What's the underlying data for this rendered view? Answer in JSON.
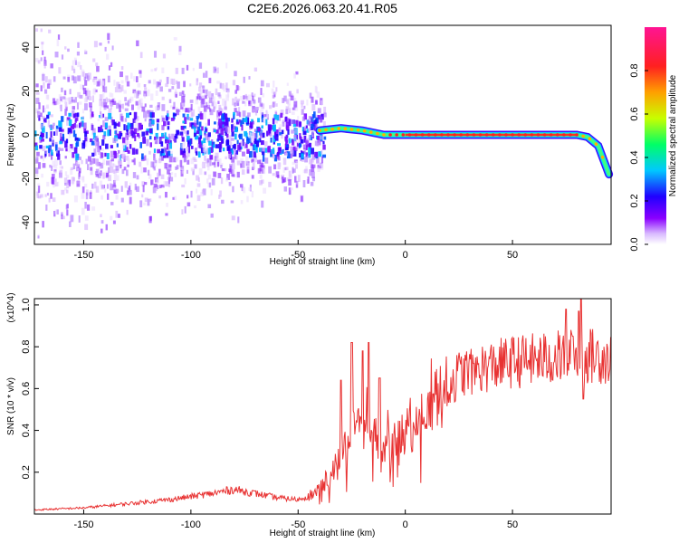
{
  "figure": {
    "title": "C2E6.2026.063.20.41.R05"
  },
  "chart_data": [
    {
      "type": "heatmap",
      "title": "C2E6.2026.063.20.41.R05",
      "xlabel": "Height of straight line (km)",
      "ylabel": "Frequency (Hz)",
      "xlim": [
        -173,
        96
      ],
      "ylim": [
        -50,
        50
      ],
      "x_ticks": [
        -150,
        -100,
        -50,
        0,
        50
      ],
      "y_ticks": [
        -40,
        -20,
        0,
        20,
        40
      ],
      "colorbar": {
        "label": "Normalized spectral amplitude",
        "range": [
          0,
          1
        ],
        "ticks": [
          0.0,
          0.2,
          0.4,
          0.6,
          0.8
        ],
        "colormap": [
          "#8a00ff",
          "#0000ff",
          "#00c8ff",
          "#00ff66",
          "#c8ff00",
          "#ffa000",
          "#ff2020",
          "#ff1493"
        ]
      },
      "ridge": {
        "description": "Bright spectral line near 0 Hz from about -40 km to +85 km, bending down to about -18 Hz at +95 km",
        "points": [
          [
            -40,
            2
          ],
          [
            -30,
            3
          ],
          [
            -20,
            2
          ],
          [
            -10,
            0
          ],
          [
            0,
            0
          ],
          [
            50,
            0
          ],
          [
            80,
            0
          ],
          [
            85,
            -1
          ],
          [
            90,
            -5
          ],
          [
            95,
            -18
          ]
        ]
      }
    },
    {
      "type": "line",
      "xlabel": "Height of straight line (km)",
      "ylabel": "SNR (10 * v/v)",
      "y_multiplier": "(x10^4)",
      "xlim": [
        -173,
        96
      ],
      "ylim": [
        0,
        1.03
      ],
      "x_ticks": [
        -150,
        -100,
        -50,
        0,
        50
      ],
      "y_ticks": [
        0.2,
        0.4,
        0.6,
        0.8,
        1.0
      ],
      "series": [
        {
          "name": "SNR",
          "color": "#e83232",
          "envelope": [
            [
              -173,
              0.02
            ],
            [
              -150,
              0.03
            ],
            [
              -130,
              0.05
            ],
            [
              -110,
              0.07
            ],
            [
              -90,
              0.1
            ],
            [
              -80,
              0.12
            ],
            [
              -70,
              0.1
            ],
            [
              -60,
              0.08
            ],
            [
              -50,
              0.07
            ],
            [
              -42,
              0.1
            ],
            [
              -35,
              0.18
            ],
            [
              -30,
              0.3
            ],
            [
              -25,
              0.4
            ],
            [
              -20,
              0.42
            ],
            [
              -15,
              0.4
            ],
            [
              -10,
              0.32
            ],
            [
              -5,
              0.38
            ],
            [
              0,
              0.42
            ],
            [
              5,
              0.42
            ],
            [
              10,
              0.5
            ],
            [
              15,
              0.55
            ],
            [
              20,
              0.62
            ],
            [
              25,
              0.68
            ],
            [
              30,
              0.7
            ],
            [
              40,
              0.72
            ],
            [
              50,
              0.74
            ],
            [
              60,
              0.75
            ],
            [
              70,
              0.76
            ],
            [
              80,
              0.77
            ],
            [
              90,
              0.77
            ],
            [
              96,
              0.76
            ]
          ],
          "peaks": [
            [
              -30,
              0.64
            ],
            [
              -25,
              0.82
            ],
            [
              -20,
              0.78
            ],
            [
              -17,
              0.82
            ],
            [
              -12,
              0.65
            ],
            [
              8,
              0.43
            ],
            [
              32,
              0.72
            ],
            [
              75,
              0.98
            ],
            [
              78,
              0.85
            ],
            [
              81,
              0.97
            ],
            [
              82,
              1.03
            ],
            [
              83,
              0.55
            ]
          ]
        }
      ]
    }
  ]
}
